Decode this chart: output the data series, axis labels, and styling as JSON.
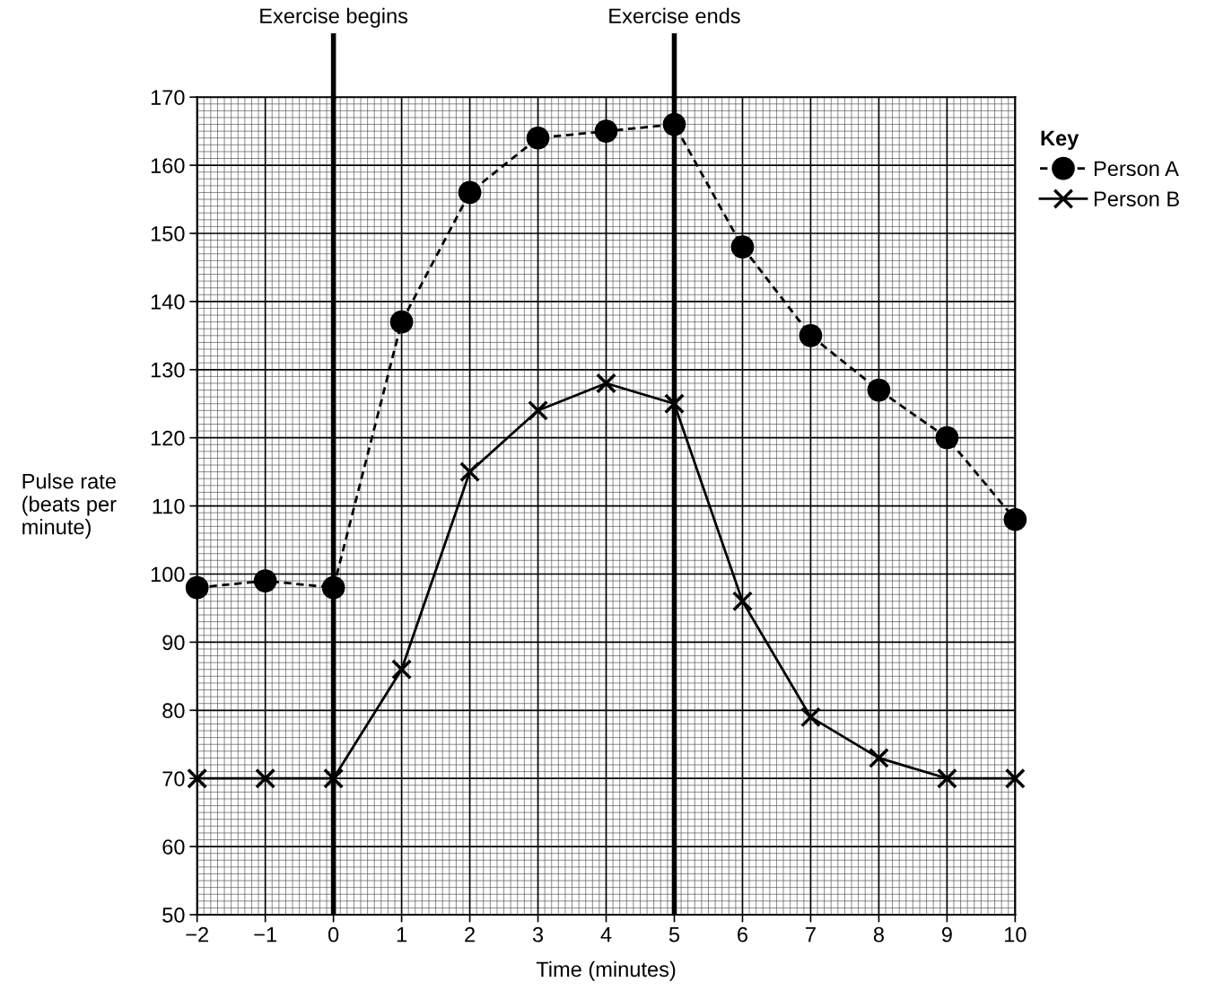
{
  "chart_data": {
    "type": "line",
    "xlabel": "Time (minutes)",
    "ylabel": "Pulse rate\n(beats per\nminute)",
    "legend_title": "Key",
    "x": [
      -2,
      -1,
      0,
      1,
      2,
      3,
      4,
      5,
      6,
      7,
      8,
      9,
      10
    ],
    "series": [
      {
        "name": "Person A",
        "color": "#000000",
        "marker": "circle",
        "line_style": "dashed",
        "values": [
          98,
          99,
          98,
          137,
          156,
          164,
          165,
          166,
          148,
          135,
          127,
          120,
          108
        ]
      },
      {
        "name": "Person B",
        "color": "#000000",
        "marker": "cross",
        "line_style": "solid",
        "values": [
          70,
          70,
          70,
          86,
          115,
          124,
          128,
          125,
          96,
          79,
          73,
          70,
          70
        ]
      }
    ],
    "xlim": [
      -2,
      10
    ],
    "ylim": [
      50,
      170
    ],
    "xticks": [
      {
        "value": -2,
        "label": "−2"
      },
      {
        "value": -1,
        "label": "−1"
      },
      0,
      1,
      2,
      3,
      4,
      5,
      6,
      7,
      8,
      9,
      10
    ],
    "yticks": [
      50,
      60,
      70,
      80,
      90,
      100,
      110,
      120,
      130,
      140,
      150,
      160,
      170
    ],
    "ref_lines": [
      {
        "axis": "x",
        "value": 0,
        "label": "Exercise begins",
        "color": "#000000"
      },
      {
        "axis": "x",
        "value": 5,
        "label": "Exercise ends",
        "color": "#000000"
      }
    ],
    "grid": true,
    "legend": "top right"
  }
}
